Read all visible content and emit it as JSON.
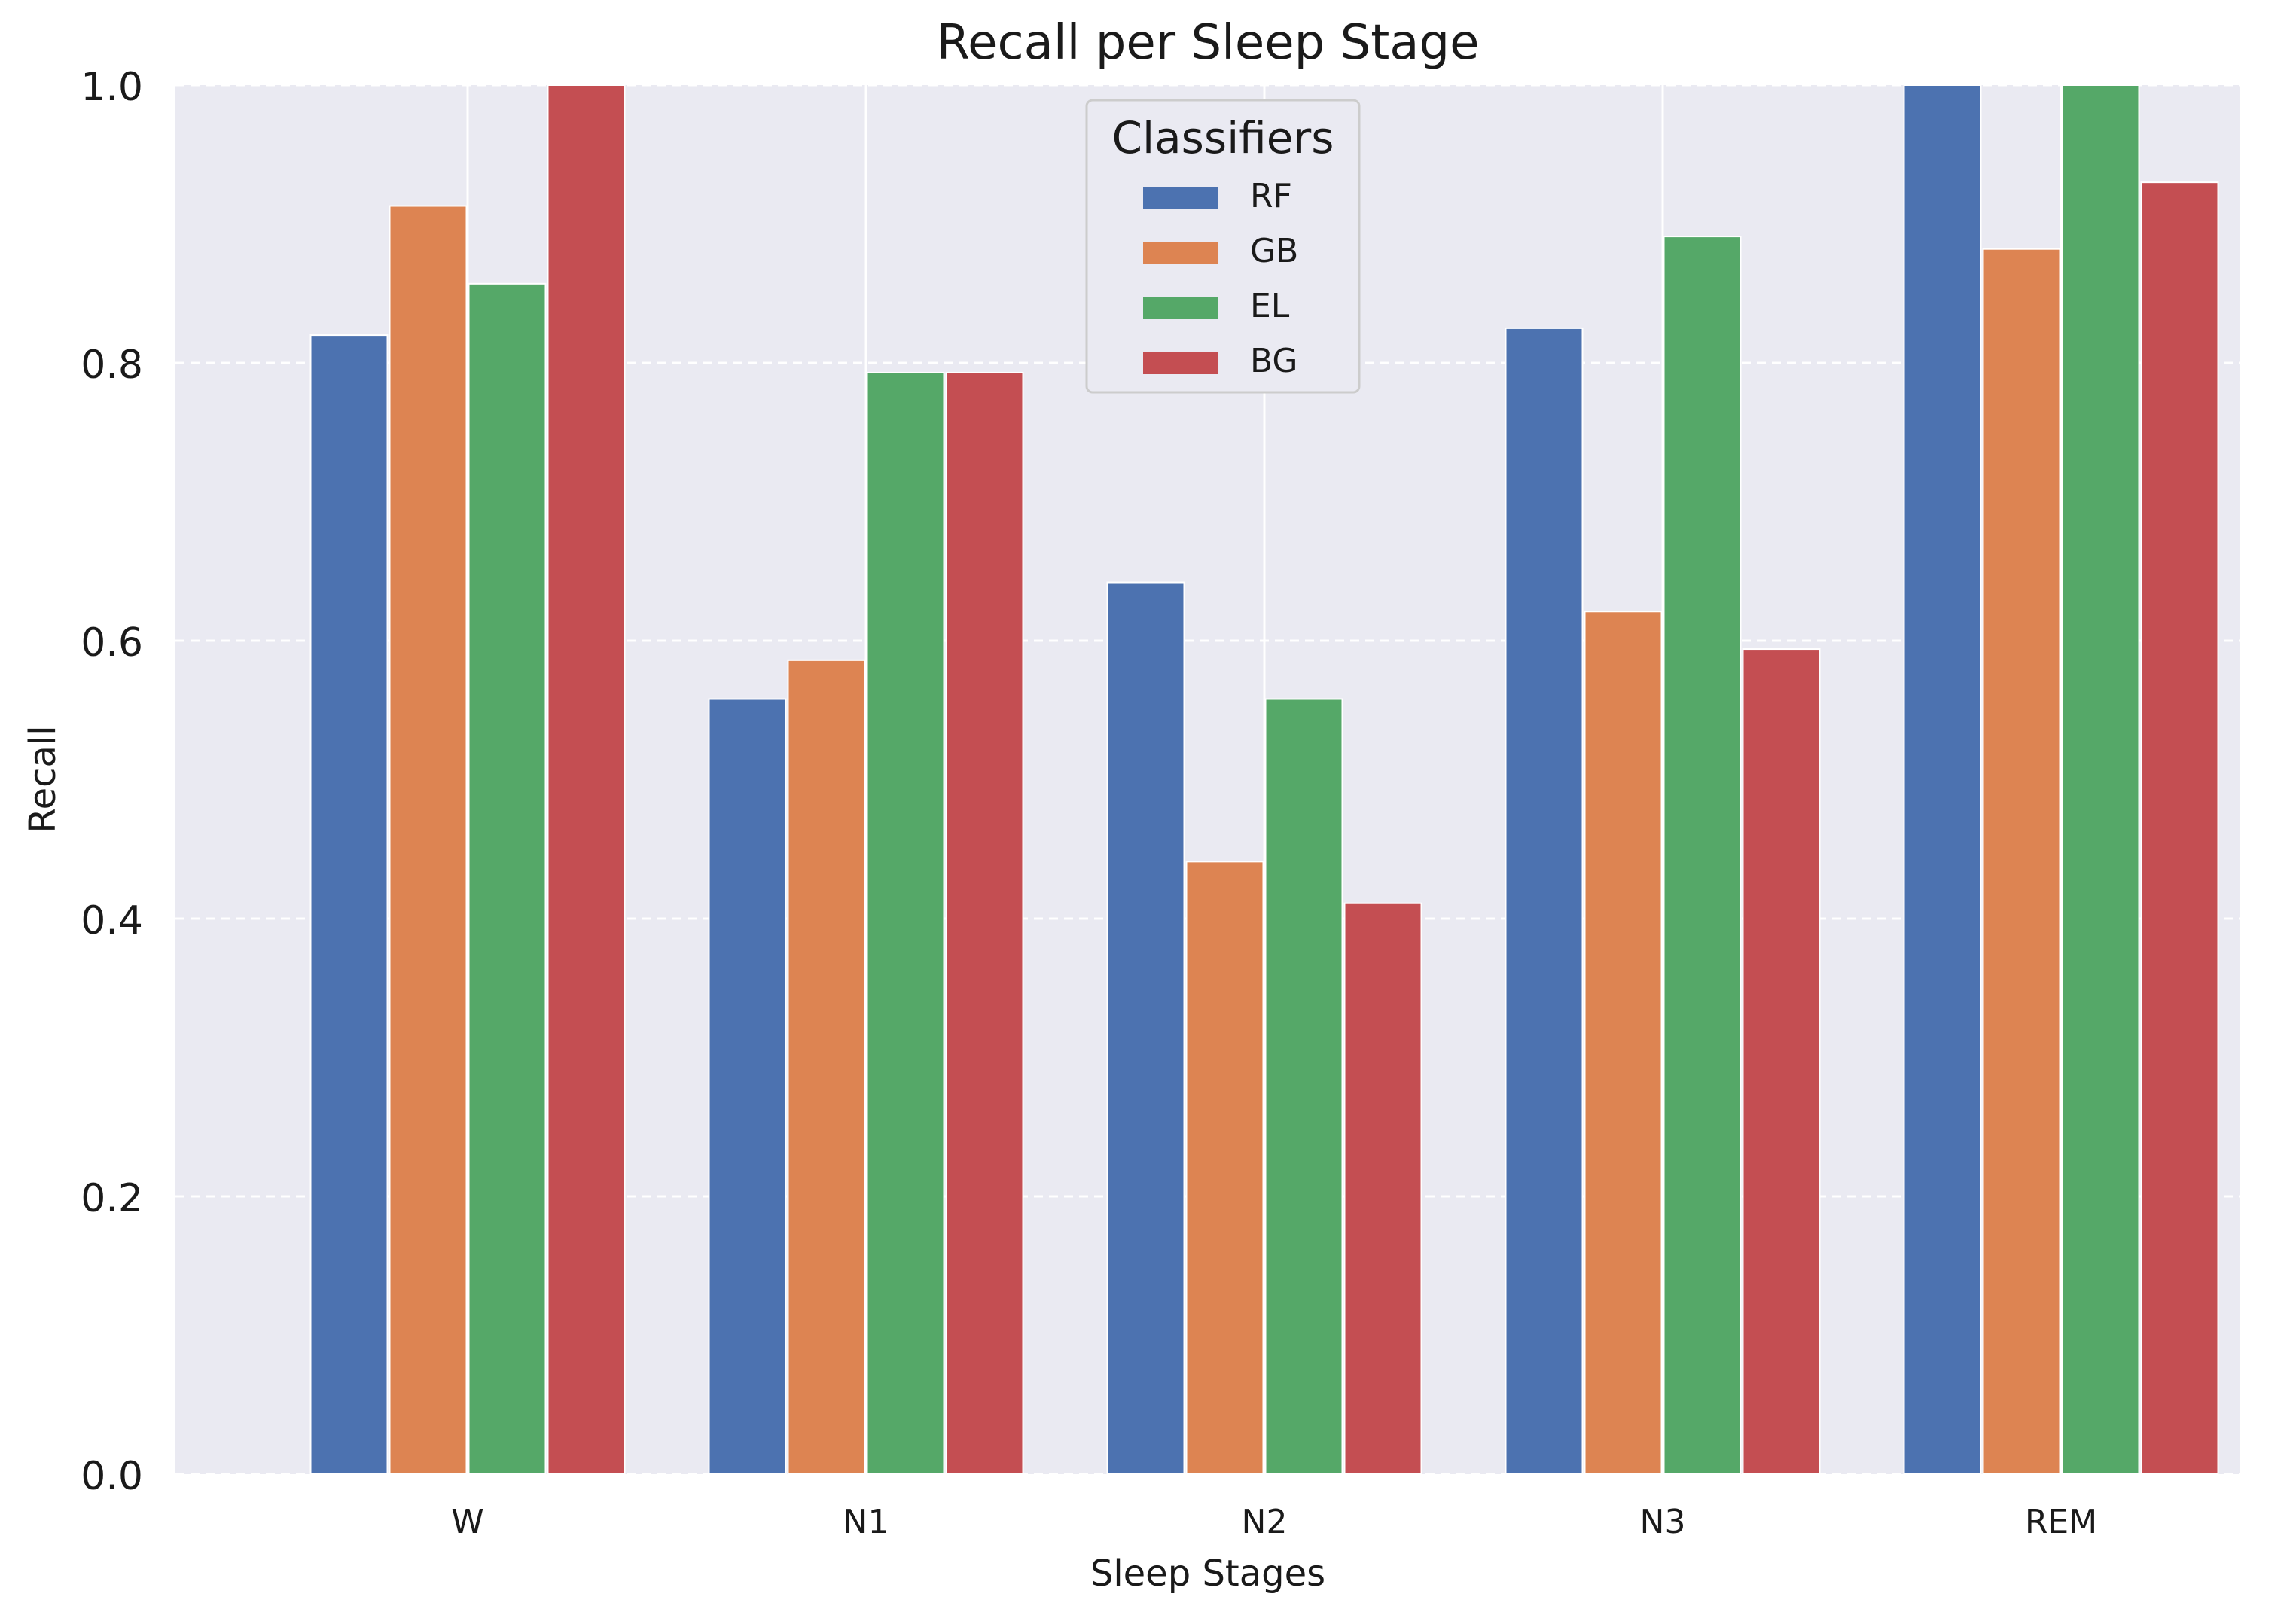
{
  "chart_data": {
    "type": "bar",
    "title": "Recall per Sleep Stage",
    "xlabel": "Sleep Stages",
    "ylabel": "Recall",
    "categories": [
      "W",
      "N1",
      "N2",
      "N3",
      "REM"
    ],
    "series": [
      {
        "name": "RF",
        "color": "#4c72b0",
        "values": [
          0.82,
          0.558,
          0.642,
          0.825,
          1.0
        ]
      },
      {
        "name": "GB",
        "color": "#dd8452",
        "values": [
          0.913,
          0.586,
          0.441,
          0.621,
          0.882
        ]
      },
      {
        "name": "EL",
        "color": "#55a868",
        "values": [
          0.857,
          0.793,
          0.558,
          0.891,
          1.0
        ]
      },
      {
        "name": "BG",
        "color": "#c44e52",
        "values": [
          1.0,
          0.793,
          0.411,
          0.594,
          0.93
        ]
      }
    ],
    "ylim": [
      0,
      1.0
    ],
    "yticks": [
      "0.0",
      "0.2",
      "0.4",
      "0.6",
      "0.8",
      "1.0"
    ],
    "grid": true,
    "legend_title": "Classifiers",
    "legend_position": "top-center"
  }
}
